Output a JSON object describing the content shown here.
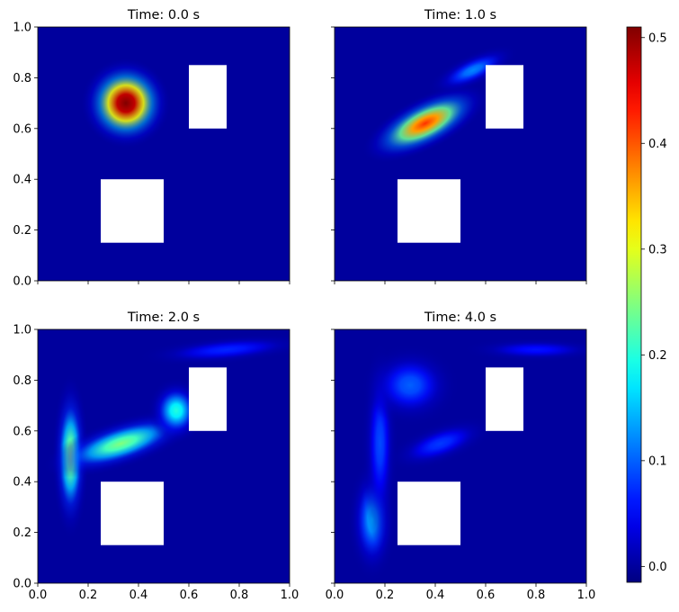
{
  "chart_data": {
    "type": "heatmap",
    "colormap": "jet",
    "colorbar": {
      "range": [
        -0.015,
        0.51
      ],
      "ticks": [
        "0.0",
        "0.1",
        "0.2",
        "0.3",
        "0.4",
        "0.5"
      ],
      "tick_values": [
        0.0,
        0.1,
        0.2,
        0.3,
        0.4,
        0.5
      ]
    },
    "obstacles": [
      {
        "x": [
          0.25,
          0.5
        ],
        "y": [
          0.15,
          0.4
        ]
      },
      {
        "x": [
          0.6,
          0.75
        ],
        "y": [
          0.6,
          0.85
        ]
      }
    ],
    "panels": [
      {
        "title": "Time: 0.0 s",
        "xlim": [
          0,
          1
        ],
        "ylim": [
          0,
          1
        ],
        "xticks": [
          "0.0",
          "0.2",
          "0.4",
          "0.6",
          "0.8",
          "1.0"
        ],
        "yticks": [
          "0.0",
          "0.2",
          "0.4",
          "0.6",
          "0.8",
          "1.0"
        ],
        "show_xticklabels": false,
        "show_yticklabels": true,
        "blobs": [
          {
            "cx": 0.35,
            "cy": 0.7,
            "rx": 0.11,
            "ry": 0.11,
            "angle": 0,
            "value": 0.55
          }
        ]
      },
      {
        "title": "Time: 1.0 s",
        "xlim": [
          0,
          1
        ],
        "ylim": [
          0,
          1
        ],
        "xticks": [
          "0.0",
          "0.2",
          "0.4",
          "0.6",
          "0.8",
          "1.0"
        ],
        "yticks": [
          "0.0",
          "0.2",
          "0.4",
          "0.6",
          "0.8",
          "1.0"
        ],
        "show_xticklabels": false,
        "show_yticklabels": false,
        "blobs": [
          {
            "cx": 0.36,
            "cy": 0.62,
            "rx": 0.17,
            "ry": 0.065,
            "angle": 27,
            "value": 0.42
          },
          {
            "cx": 0.55,
            "cy": 0.83,
            "rx": 0.12,
            "ry": 0.04,
            "angle": 25,
            "value": 0.12
          }
        ]
      },
      {
        "title": "Time: 2.0 s",
        "xlim": [
          0,
          1
        ],
        "ylim": [
          0,
          1
        ],
        "xticks": [
          "0.0",
          "0.2",
          "0.4",
          "0.6",
          "0.8",
          "1.0"
        ],
        "yticks": [
          "0.0",
          "0.2",
          "0.4",
          "0.6",
          "0.8",
          "1.0"
        ],
        "show_xticklabels": true,
        "show_yticklabels": true,
        "blobs": [
          {
            "cx": 0.13,
            "cy": 0.5,
            "rx": 0.045,
            "ry": 0.2,
            "angle": 0,
            "value": 0.26
          },
          {
            "cx": 0.33,
            "cy": 0.55,
            "rx": 0.2,
            "ry": 0.06,
            "angle": 18,
            "value": 0.25
          },
          {
            "cx": 0.55,
            "cy": 0.68,
            "rx": 0.07,
            "ry": 0.08,
            "angle": 0,
            "value": 0.2
          },
          {
            "cx": 0.75,
            "cy": 0.92,
            "rx": 0.22,
            "ry": 0.035,
            "angle": 5,
            "value": 0.07
          }
        ]
      },
      {
        "title": "Time: 4.0 s",
        "xlim": [
          0,
          1
        ],
        "ylim": [
          0,
          1
        ],
        "xticks": [
          "0.0",
          "0.2",
          "0.4",
          "0.6",
          "0.8",
          "1.0"
        ],
        "yticks": [
          "0.0",
          "0.2",
          "0.4",
          "0.6",
          "0.8",
          "1.0"
        ],
        "show_xticklabels": true,
        "show_yticklabels": false,
        "blobs": [
          {
            "cx": 0.15,
            "cy": 0.25,
            "rx": 0.06,
            "ry": 0.15,
            "angle": 0,
            "value": 0.14
          },
          {
            "cx": 0.18,
            "cy": 0.55,
            "rx": 0.045,
            "ry": 0.25,
            "angle": 0,
            "value": 0.09
          },
          {
            "cx": 0.3,
            "cy": 0.78,
            "rx": 0.12,
            "ry": 0.1,
            "angle": 0,
            "value": 0.1
          },
          {
            "cx": 0.42,
            "cy": 0.55,
            "rx": 0.14,
            "ry": 0.05,
            "angle": 20,
            "value": 0.08
          },
          {
            "cx": 0.8,
            "cy": 0.92,
            "rx": 0.18,
            "ry": 0.03,
            "angle": 0,
            "value": 0.06
          }
        ]
      }
    ]
  }
}
